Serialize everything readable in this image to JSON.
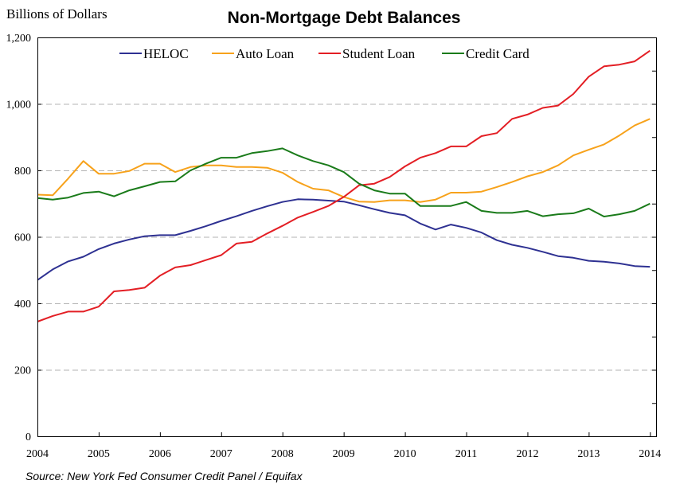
{
  "chart_data": {
    "type": "line",
    "title": "Non-Mortgage Debt Balances",
    "ylabel": "Billions of Dollars",
    "source": "Source: New York Fed Consumer Credit Panel / Equifax",
    "ylim": [
      0,
      1200
    ],
    "xlim": [
      2004.0,
      2014.1
    ],
    "yticks": [
      0,
      200,
      400,
      600,
      800,
      1000,
      1200
    ],
    "ytick_labels": [
      "0",
      "200",
      "400",
      "600",
      "800",
      "1,000",
      "1,200"
    ],
    "xticks": [
      2004,
      2005,
      2006,
      2007,
      2008,
      2009,
      2010,
      2011,
      2012,
      2013,
      2014
    ],
    "xtick_labels": [
      "2004",
      "2005",
      "2006",
      "2007",
      "2008",
      "2009",
      "2010",
      "2011",
      "2012",
      "2013",
      "2014"
    ],
    "grid": "horizontal dashed",
    "legend": "top",
    "x": [
      2004.0,
      2004.25,
      2004.5,
      2004.75,
      2005.0,
      2005.25,
      2005.5,
      2005.75,
      2006.0,
      2006.25,
      2006.5,
      2006.75,
      2007.0,
      2007.25,
      2007.5,
      2007.75,
      2008.0,
      2008.25,
      2008.5,
      2008.75,
      2009.0,
      2009.25,
      2009.5,
      2009.75,
      2010.0,
      2010.25,
      2010.5,
      2010.75,
      2011.0,
      2011.25,
      2011.5,
      2011.75,
      2012.0,
      2012.25,
      2012.5,
      2012.75,
      2013.0,
      2013.25,
      2013.5,
      2013.75,
      2014.0
    ],
    "series": [
      {
        "name": "HELOC",
        "color": "#2e3192",
        "values": [
          470,
          502,
          526,
          540,
          563,
          580,
          592,
          602,
          605,
          605,
          618,
          632,
          648,
          662,
          678,
          692,
          705,
          713,
          712,
          709,
          706,
          695,
          683,
          672,
          665,
          640,
          622,
          637,
          627,
          613,
          590,
          576,
          567,
          555,
          542,
          537,
          528,
          525,
          520,
          512,
          510
        ]
      },
      {
        "name": "Auto Loan",
        "color": "#f7a21b",
        "values": [
          727,
          725,
          775,
          828,
          790,
          790,
          798,
          820,
          820,
          795,
          810,
          815,
          815,
          810,
          810,
          808,
          793,
          765,
          745,
          740,
          720,
          706,
          705,
          710,
          710,
          705,
          712,
          733,
          733,
          736,
          750,
          765,
          782,
          795,
          815,
          845,
          862,
          878,
          905,
          935,
          955
        ]
      },
      {
        "name": "Student Loan",
        "color": "#e31e24",
        "values": [
          345,
          362,
          375,
          375,
          390,
          436,
          440,
          447,
          483,
          508,
          515,
          530,
          545,
          580,
          585,
          610,
          633,
          658,
          675,
          693,
          720,
          755,
          760,
          780,
          812,
          838,
          852,
          872,
          872,
          903,
          912,
          955,
          968,
          988,
          995,
          1030,
          1082,
          1113,
          1118,
          1128,
          1160
        ]
      },
      {
        "name": "Credit Card",
        "color": "#1a7b1a",
        "values": [
          717,
          712,
          718,
          732,
          736,
          722,
          740,
          752,
          765,
          767,
          800,
          820,
          838,
          838,
          852,
          858,
          866,
          845,
          828,
          815,
          795,
          760,
          740,
          730,
          730,
          693,
          693,
          693,
          705,
          678,
          672,
          672,
          678,
          662,
          668,
          671,
          685,
          661,
          668,
          678,
          700
        ]
      }
    ]
  }
}
